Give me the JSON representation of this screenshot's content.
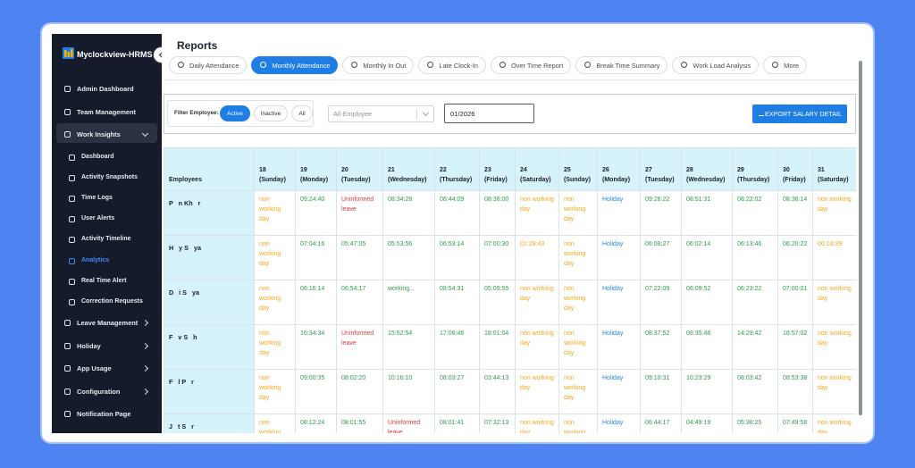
{
  "sidebar": {
    "brand": "Myclockview-HRMS",
    "items": [
      {
        "label": "Admin Dashboard"
      },
      {
        "label": "Team Management"
      },
      {
        "label": "Work Insights",
        "expanded": true,
        "children": [
          {
            "label": "Dashboard"
          },
          {
            "label": "Activity Snapshots"
          },
          {
            "label": "Time Logs"
          },
          {
            "label": "User Alerts"
          },
          {
            "label": "Activity Timeline"
          },
          {
            "label": "Analytics",
            "active": true
          },
          {
            "label": "Real Time Alert"
          },
          {
            "label": "Correction Requests"
          }
        ]
      },
      {
        "label": "Leave Management",
        "expandable": true
      },
      {
        "label": "Holiday",
        "expandable": true
      },
      {
        "label": "App Usage",
        "expandable": true
      },
      {
        "label": "Configuration",
        "expandable": true
      },
      {
        "label": "Notification Page"
      }
    ]
  },
  "header": {
    "title": "Reports",
    "tabs": [
      {
        "label": "Daily Attendance"
      },
      {
        "label": "Monthly Attendance",
        "active": true
      },
      {
        "label": "Monthly In Out"
      },
      {
        "label": "Late Clock-In"
      },
      {
        "label": "Over Time Report"
      },
      {
        "label": "Break Time Summary"
      },
      {
        "label": "Work Load Analysis"
      },
      {
        "label": "More"
      }
    ]
  },
  "filters": {
    "label": "Filter Employee:",
    "buttons": [
      {
        "label": "Active",
        "active": true
      },
      {
        "label": "Inactive"
      },
      {
        "label": "All"
      }
    ],
    "select": "All Employee",
    "month": "01/2026",
    "export": "EXPORT SALARY DETAIL"
  },
  "table": {
    "first_header": "Employees",
    "columns": [
      {
        "day": "18",
        "weekday": "(Sunday)"
      },
      {
        "day": "19",
        "weekday": "(Monday)"
      },
      {
        "day": "20",
        "weekday": "(Tuesday)"
      },
      {
        "day": "21",
        "weekday": "(Wednesday)"
      },
      {
        "day": "22",
        "weekday": "(Thursday)"
      },
      {
        "day": "23",
        "weekday": "(Friday)"
      },
      {
        "day": "24",
        "weekday": "(Saturday)"
      },
      {
        "day": "25",
        "weekday": "(Sunday)"
      },
      {
        "day": "26",
        "weekday": "(Monday)"
      },
      {
        "day": "27",
        "weekday": "(Tuesday)"
      },
      {
        "day": "28",
        "weekday": "(Wednesday)"
      },
      {
        "day": "29",
        "weekday": "(Thursday)"
      },
      {
        "day": "30",
        "weekday": "(Friday)"
      },
      {
        "day": "31",
        "weekday": "(Saturday)"
      }
    ],
    "rows": [
      {
        "name": "P   n Kh   r",
        "cells": [
          [
            "non working day",
            "orange"
          ],
          [
            "09:24:40",
            "green"
          ],
          [
            "Uninformed leave",
            "red"
          ],
          [
            "08:34:28",
            "green"
          ],
          [
            "06:44:09",
            "green"
          ],
          [
            "08:36:00",
            "green"
          ],
          [
            "non working day",
            "orange"
          ],
          [
            "non working day",
            "orange"
          ],
          [
            "Holiday",
            "blue"
          ],
          [
            "09:26:22",
            "green"
          ],
          [
            "08:51:31",
            "green"
          ],
          [
            "08:22:02",
            "green"
          ],
          [
            "08:36:14",
            "green"
          ],
          [
            "non working day",
            "orange"
          ]
        ]
      },
      {
        "name": "H   y S   ya",
        "cells": [
          [
            "non working day",
            "orange"
          ],
          [
            "07:04:16",
            "green"
          ],
          [
            "05:47:05",
            "green"
          ],
          [
            "05:53:56",
            "green"
          ],
          [
            "06:53:14",
            "green"
          ],
          [
            "07:00:30",
            "green"
          ],
          [
            "01:28:43",
            "orange"
          ],
          [
            "non working day",
            "orange"
          ],
          [
            "Holiday",
            "blue"
          ],
          [
            "06:08:27",
            "green"
          ],
          [
            "06:02:14",
            "green"
          ],
          [
            "06:13:46",
            "green"
          ],
          [
            "06:20:22",
            "green"
          ],
          [
            "00:18:39",
            "orange"
          ]
        ]
      },
      {
        "name": "D   i S   ya",
        "cells": [
          [
            "non working day",
            "orange"
          ],
          [
            "06:16:14",
            "green"
          ],
          [
            "06:54:17",
            "green"
          ],
          [
            "working...",
            "green"
          ],
          [
            "08:54:31",
            "green"
          ],
          [
            "05:09:55",
            "green"
          ],
          [
            "non working day",
            "orange"
          ],
          [
            "non working day",
            "orange"
          ],
          [
            "Holiday",
            "blue"
          ],
          [
            "07:22:09",
            "green"
          ],
          [
            "06:09:52",
            "green"
          ],
          [
            "06:23:22",
            "green"
          ],
          [
            "07:00:01",
            "green"
          ],
          [
            "non working day",
            "orange"
          ]
        ]
      },
      {
        "name": "F   v S   h",
        "cells": [
          [
            "non working day",
            "orange"
          ],
          [
            "16:34:34",
            "green"
          ],
          [
            "Uninformed leave",
            "red"
          ],
          [
            "15:52:54",
            "green"
          ],
          [
            "17:06:46",
            "green"
          ],
          [
            "18:01:04",
            "green"
          ],
          [
            "non working day",
            "orange"
          ],
          [
            "non working day",
            "orange"
          ],
          [
            "Holiday",
            "blue"
          ],
          [
            "08:37:52",
            "green"
          ],
          [
            "08:35:48",
            "green"
          ],
          [
            "14:29:42",
            "green"
          ],
          [
            "16:57:02",
            "green"
          ],
          [
            "non working day",
            "orange"
          ]
        ]
      },
      {
        "name": "F   l P   r",
        "cells": [
          [
            "non working day",
            "orange"
          ],
          [
            "09:00:35",
            "green"
          ],
          [
            "08:02:20",
            "green"
          ],
          [
            "10:16:10",
            "green"
          ],
          [
            "08:03:27",
            "green"
          ],
          [
            "03:44:13",
            "green"
          ],
          [
            "non working day",
            "orange"
          ],
          [
            "non working day",
            "orange"
          ],
          [
            "Holiday",
            "blue"
          ],
          [
            "09:10:31",
            "green"
          ],
          [
            "10:23:29",
            "green"
          ],
          [
            "08:03:42",
            "green"
          ],
          [
            "08:53:38",
            "green"
          ],
          [
            "non working day",
            "orange"
          ]
        ]
      },
      {
        "name": "J   t S   r",
        "cells": [
          [
            "non working day",
            "orange"
          ],
          [
            "08:12:24",
            "green"
          ],
          [
            "08:01:55",
            "green"
          ],
          [
            "Uninformed leave",
            "red"
          ],
          [
            "08:01:41",
            "green"
          ],
          [
            "07:32:13",
            "green"
          ],
          [
            "non working day",
            "orange"
          ],
          [
            "non working day",
            "orange"
          ],
          [
            "Holiday",
            "blue"
          ],
          [
            "06:44:17",
            "green"
          ],
          [
            "04:49:19",
            "green"
          ],
          [
            "05:38:25",
            "green"
          ],
          [
            "07:49:58",
            "green"
          ],
          [
            "non working day",
            "orange"
          ]
        ]
      }
    ]
  }
}
